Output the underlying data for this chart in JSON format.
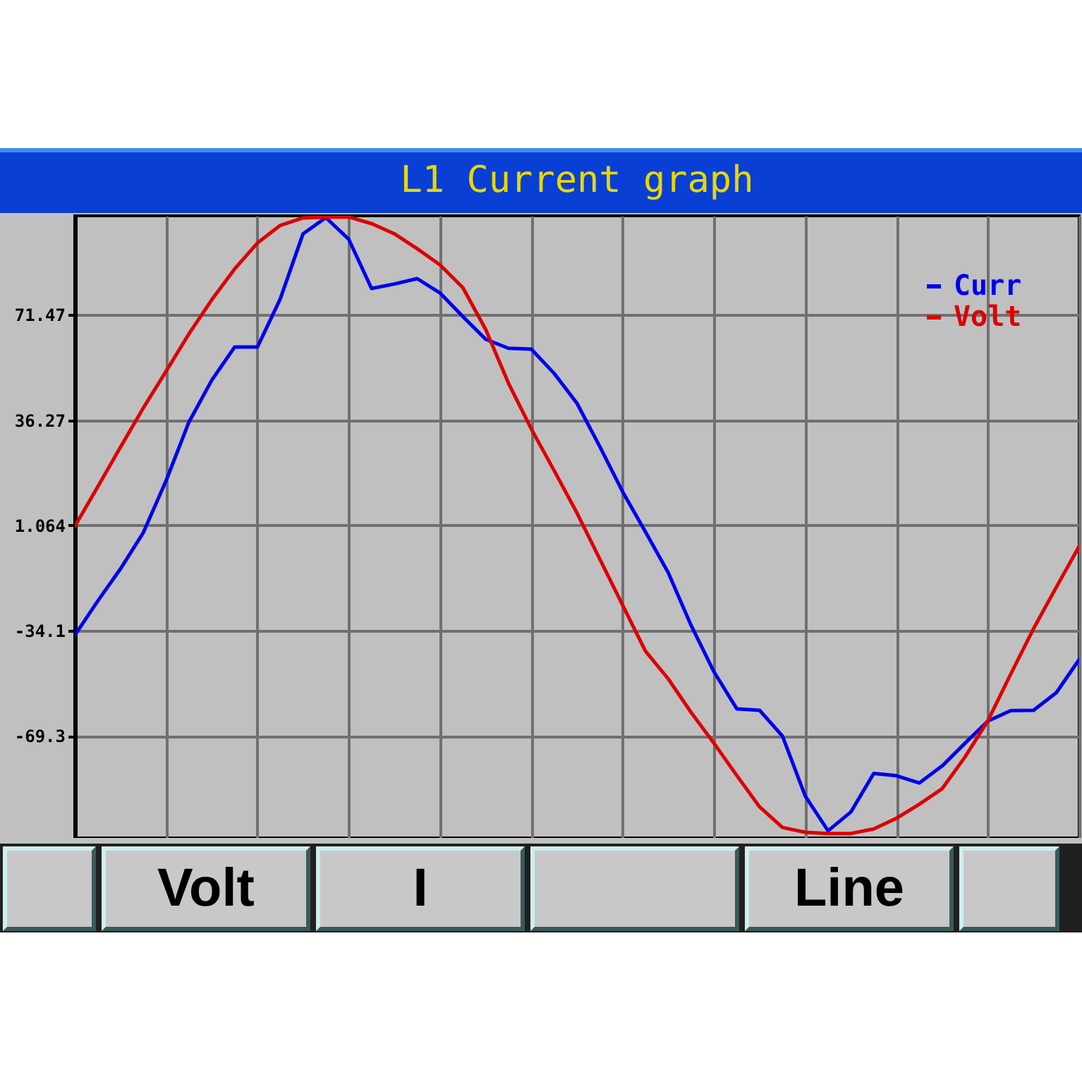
{
  "chart_data": {
    "type": "line",
    "title": "L1 Current graph",
    "categories": [
      null,
      null,
      null,
      null,
      null,
      null,
      null,
      null,
      null,
      null,
      null,
      null,
      null,
      null,
      null,
      null,
      null,
      null,
      null,
      null,
      null,
      null,
      null,
      null,
      null,
      null,
      null,
      null,
      null,
      null,
      null,
      null,
      null,
      null,
      null,
      null,
      null,
      null,
      null,
      null,
      null,
      null,
      null,
      null,
      null
    ],
    "ylim": [
      -103.5,
      104.6
    ],
    "yticks": [
      71.47,
      36.27,
      1.064,
      -34.1,
      -69.3
    ],
    "tick_labels": "y",
    "grid": true,
    "legend": "top right",
    "annotations": [
      "Volt",
      "I",
      "Line"
    ],
    "series": [
      {
        "name": "Curr",
        "color": "#0000ee",
        "values": [
          -35.7,
          -24.3,
          -13.5,
          -1.4,
          16,
          35.6,
          49.6,
          60.7,
          60.7,
          76.8,
          98.6,
          104,
          96.8,
          80.3,
          81.8,
          83.6,
          78.8,
          70.9,
          63.3,
          60.3,
          60,
          51.9,
          41.9,
          27.4,
          12.3,
          -1.1,
          -14.8,
          -32.4,
          -47.9,
          -60.3,
          -60.8,
          -69.4,
          -89.5,
          -101.1,
          -94.8,
          -81.9,
          -82.7,
          -85.1,
          -79.4,
          -71.8,
          -64.4,
          -60.9,
          -60.8,
          -54.9,
          -43.8
        ]
      },
      {
        "name": "Volt",
        "color": "#dd0000",
        "values": [
          0.7,
          13.9,
          27.2,
          40.3,
          52.6,
          65.1,
          76.5,
          86.8,
          95.5,
          101.4,
          103.9,
          104.2,
          104.2,
          102,
          98.6,
          93.6,
          88.2,
          80.6,
          66.6,
          48.6,
          33.3,
          19.4,
          5.2,
          -10.2,
          -25.6,
          -41,
          -50.3,
          -61.5,
          -71.8,
          -82.6,
          -93.1,
          -100,
          -101.6,
          -102,
          -102,
          -100.5,
          -96.9,
          -92.2,
          -87,
          -76.4,
          -64.3,
          -48.7,
          -33.5,
          -19.6,
          -5.9
        ]
      }
    ]
  }
}
